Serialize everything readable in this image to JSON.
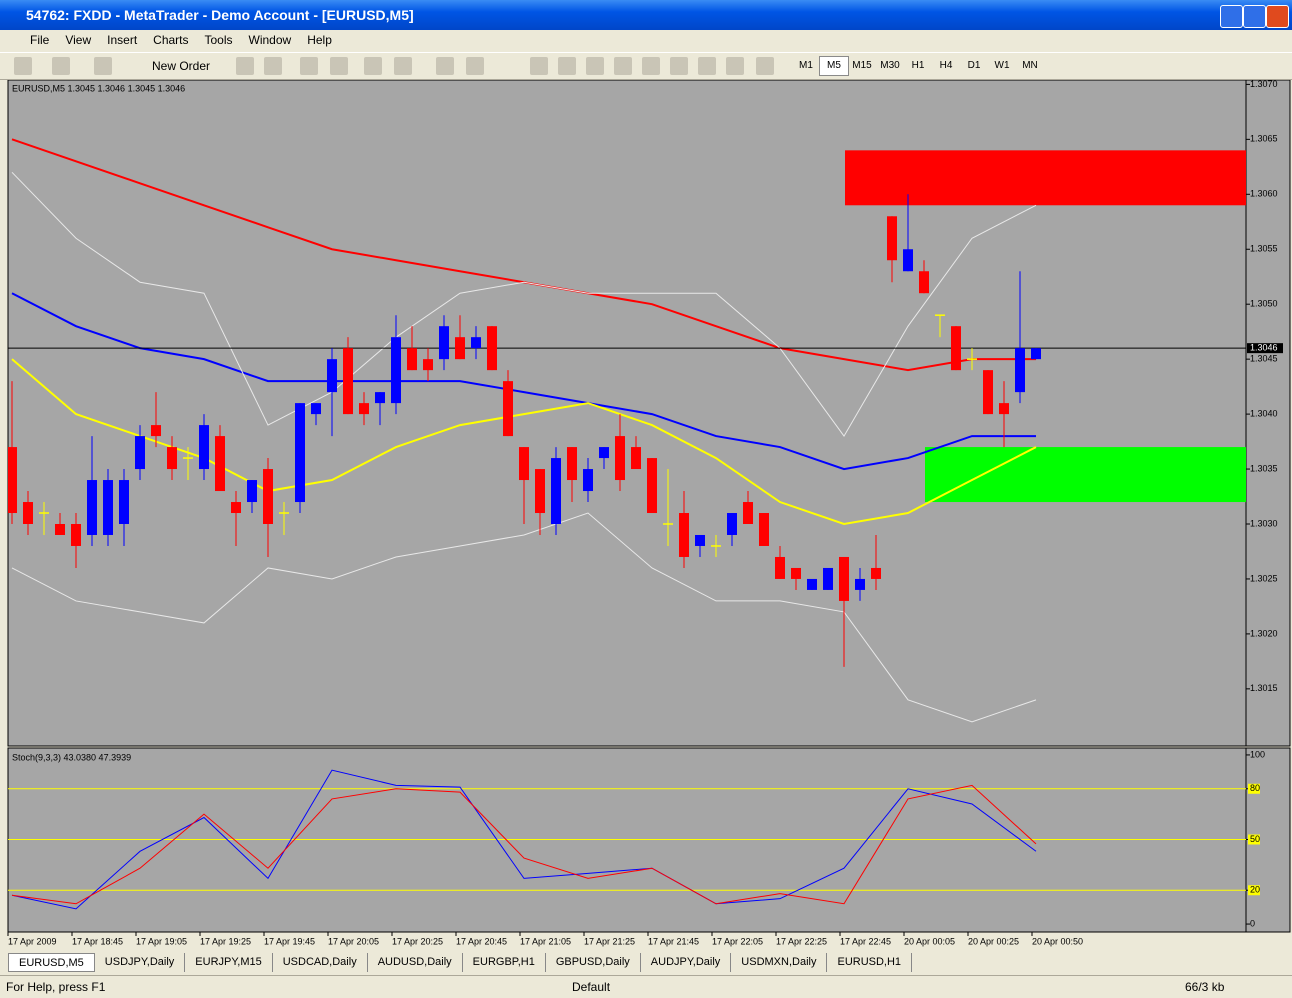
{
  "window": {
    "title": "54762: FXDD - MetaTrader - Demo Account - [EURUSD,M5]",
    "menu": [
      "File",
      "View",
      "Insert",
      "Charts",
      "Tools",
      "Window",
      "Help"
    ],
    "new_order": "New Order",
    "timeframes": [
      "M1",
      "M5",
      "M15",
      "M30",
      "H1",
      "H4",
      "D1",
      "W1",
      "MN"
    ],
    "tabs": [
      "EURUSD,M5",
      "USDJPY,Daily",
      "EURJPY,M15",
      "USDCAD,Daily",
      "AUDUSD,Daily",
      "EURGBP,H1",
      "GBPUSD,Daily",
      "AUDJPY,Daily",
      "USDMXN,Daily",
      "EURUSD,H1"
    ],
    "status": {
      "help": "For Help, press F1",
      "profile": "Default",
      "traffic": "66/3 kb"
    }
  },
  "chart_data": [
    {
      "type": "candlestick",
      "info": "EURUSD,M5  1.3045 1.3046 1.3045 1.3046",
      "up_color": "#0000ff",
      "down_color": "#ff0000",
      "doji_color": "#ffff00",
      "open": [
        1.3037,
        1.3032,
        1.3031,
        1.303,
        1.303,
        1.3029,
        1.3029,
        1.303,
        1.3035,
        1.3039,
        1.3037,
        1.3036,
        1.3035,
        1.3038,
        1.3032,
        1.3032,
        1.3035,
        1.3031,
        1.3032,
        1.304,
        1.3042,
        1.3046,
        1.3041,
        1.3041,
        1.3041,
        1.3046,
        1.3045,
        1.3045,
        1.3047,
        1.3046,
        1.3048,
        1.3043,
        1.3037,
        1.3035,
        1.303,
        1.3037,
        1.3033,
        1.3036,
        1.3038,
        1.3037,
        1.3036,
        1.303,
        1.3031,
        1.3028,
        1.3028,
        1.3029,
        1.3032,
        1.3031,
        1.3027,
        1.3026,
        1.3024,
        1.3024,
        1.3027,
        1.3024,
        1.3026,
        1.3058,
        1.3053,
        1.3053,
        1.3049,
        1.3048,
        1.3045,
        1.3044,
        1.3041,
        1.3042,
        1.3045
      ],
      "high": [
        1.3043,
        1.3033,
        1.3032,
        1.3031,
        1.3031,
        1.3038,
        1.3035,
        1.3035,
        1.3039,
        1.3042,
        1.3038,
        1.3037,
        1.304,
        1.3039,
        1.3033,
        1.3034,
        1.3036,
        1.3032,
        1.3041,
        1.3041,
        1.3046,
        1.3047,
        1.3042,
        1.3042,
        1.3049,
        1.3048,
        1.3046,
        1.3049,
        1.3049,
        1.3048,
        1.3048,
        1.3044,
        1.3037,
        1.3035,
        1.3037,
        1.3037,
        1.3036,
        1.3037,
        1.304,
        1.3038,
        1.3036,
        1.3035,
        1.3033,
        1.3029,
        1.3029,
        1.3031,
        1.3033,
        1.3031,
        1.3028,
        1.3026,
        1.3025,
        1.3026,
        1.3027,
        1.3026,
        1.3029,
        1.3058,
        1.306,
        1.3054,
        1.3049,
        1.3048,
        1.3046,
        1.3044,
        1.3043,
        1.3053,
        1.3046
      ],
      "low": [
        1.303,
        1.3029,
        1.3029,
        1.3029,
        1.3026,
        1.3028,
        1.3028,
        1.3028,
        1.3034,
        1.3037,
        1.3034,
        1.3034,
        1.3034,
        1.3033,
        1.3028,
        1.3031,
        1.3027,
        1.3029,
        1.3031,
        1.3039,
        1.3038,
        1.304,
        1.3039,
        1.3039,
        1.304,
        1.3044,
        1.3043,
        1.3044,
        1.3045,
        1.3045,
        1.3044,
        1.3038,
        1.303,
        1.3029,
        1.3029,
        1.3032,
        1.3032,
        1.3035,
        1.3033,
        1.3035,
        1.3031,
        1.3028,
        1.3026,
        1.3027,
        1.3027,
        1.3028,
        1.303,
        1.3028,
        1.3025,
        1.3024,
        1.3024,
        1.3024,
        1.3017,
        1.3023,
        1.3024,
        1.3052,
        1.3053,
        1.3051,
        1.3047,
        1.3044,
        1.3044,
        1.304,
        1.3037,
        1.3041,
        1.3045
      ],
      "close": [
        1.3031,
        1.303,
        1.3031,
        1.3029,
        1.3028,
        1.3034,
        1.3034,
        1.3034,
        1.3038,
        1.3038,
        1.3035,
        1.3036,
        1.3039,
        1.3033,
        1.3031,
        1.3034,
        1.303,
        1.3031,
        1.3041,
        1.3041,
        1.3045,
        1.304,
        1.304,
        1.3042,
        1.3047,
        1.3044,
        1.3044,
        1.3048,
        1.3045,
        1.3047,
        1.3044,
        1.3038,
        1.3034,
        1.3031,
        1.3036,
        1.3034,
        1.3035,
        1.3037,
        1.3034,
        1.3035,
        1.3031,
        1.303,
        1.3027,
        1.3029,
        1.3028,
        1.3031,
        1.303,
        1.3028,
        1.3025,
        1.3025,
        1.3025,
        1.3026,
        1.3023,
        1.3025,
        1.3025,
        1.3054,
        1.3055,
        1.3051,
        1.3049,
        1.3044,
        1.3045,
        1.304,
        1.304,
        1.3046,
        1.3046
      ],
      "time_labels": [
        "17 Apr 2009",
        "17 Apr 18:45",
        "17 Apr 19:05",
        "17 Apr 19:25",
        "17 Apr 19:45",
        "17 Apr 20:05",
        "17 Apr 20:25",
        "17 Apr 20:45",
        "17 Apr 21:05",
        "17 Apr 21:25",
        "17 Apr 21:45",
        "17 Apr 22:05",
        "17 Apr 22:25",
        "17 Apr 22:45",
        "20 Apr 00:05",
        "20 Apr 00:25",
        "20 Apr 00:50"
      ],
      "series": [
        {
          "color": "#ff0000",
          "values": [
            1.3065,
            1.3063,
            1.3061,
            1.3059,
            1.3057,
            1.3055,
            1.3054,
            1.3053,
            1.3052,
            1.3051,
            1.305,
            1.3048,
            1.3046,
            1.3045,
            1.3044,
            1.3045,
            1.3045
          ]
        },
        {
          "color": "#0000ff",
          "values": [
            1.3051,
            1.3048,
            1.3046,
            1.3045,
            1.3043,
            1.3043,
            1.3043,
            1.3043,
            1.3042,
            1.3041,
            1.304,
            1.3038,
            1.3037,
            1.3035,
            1.3036,
            1.3038,
            1.3038
          ]
        },
        {
          "color": "#ffff00",
          "values": [
            1.3045,
            1.304,
            1.3038,
            1.3036,
            1.3033,
            1.3034,
            1.3037,
            1.3039,
            1.304,
            1.3041,
            1.3039,
            1.3036,
            1.3032,
            1.303,
            1.3031,
            1.3034,
            1.3037
          ]
        },
        {
          "color": "#e8e8e8",
          "values": [
            1.3062,
            1.3056,
            1.3052,
            1.3051,
            1.3039,
            1.3042,
            1.3047,
            1.3051,
            1.3052,
            1.3051,
            1.3051,
            1.3051,
            1.3046,
            1.3038,
            1.3048,
            1.3056,
            1.3059
          ]
        },
        {
          "color": "#e8e8e8",
          "values": [
            1.3026,
            1.3023,
            1.3022,
            1.3021,
            1.3026,
            1.3025,
            1.3027,
            1.3028,
            1.3029,
            1.3031,
            1.3026,
            1.3023,
            1.3023,
            1.3022,
            1.3014,
            1.3012,
            1.3014
          ]
        }
      ],
      "zones": [
        {
          "color": "#ff0000",
          "from": 52,
          "top": 1.3064,
          "bottom": 1.3059
        },
        {
          "color": "#00ff00",
          "from": 57,
          "top": 1.3037,
          "bottom": 1.3032
        }
      ],
      "current_price": 1.3046,
      "ylim": [
        1.30098,
        1.30704
      ],
      "yticks": [
        {
          "value": 1.307,
          "label": "1.3070"
        },
        1.3065,
        {
          "value": 1.306,
          "label": "1.3060"
        },
        1.3055,
        {
          "value": 1.305,
          "label": "1.3050"
        },
        1.3045,
        {
          "value": 1.304,
          "label": "1.3040"
        },
        1.3035,
        {
          "value": 1.303,
          "label": "1.3030"
        },
        1.3025,
        {
          "value": 1.302,
          "label": "1.3020"
        },
        1.3015
      ],
      "grid": false
    },
    {
      "type": "line",
      "title": "Stoch(9,3,3) 43.0380 47.3939",
      "series": [
        {
          "color": "#0000ff",
          "values": [
            17,
            9,
            43,
            63,
            27,
            91,
            82,
            81,
            27,
            30,
            33,
            12,
            15,
            33,
            80,
            71,
            43.038
          ]
        },
        {
          "color": "#ff0000",
          "values": [
            17,
            12,
            33,
            65,
            33,
            74,
            80,
            78,
            39,
            27,
            33,
            12,
            18,
            12,
            74,
            82,
            47.3939
          ]
        }
      ],
      "levels": [
        80,
        50,
        20
      ],
      "level_color": "#ffff00",
      "ylim": [
        -4.7,
        104.1
      ],
      "yticks": [
        100,
        80,
        50,
        20,
        0
      ],
      "grid": false
    }
  ]
}
